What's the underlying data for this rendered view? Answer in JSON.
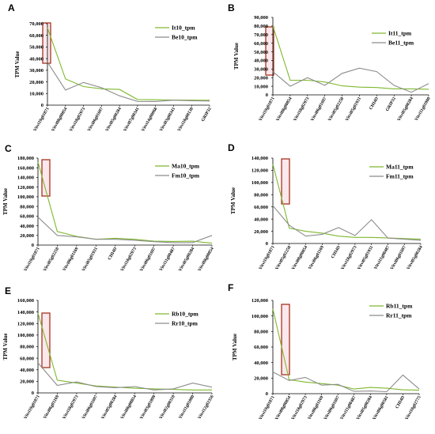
{
  "colors": {
    "series1": "#7fb82e",
    "series2": "#8c8c8c",
    "highlight_border": "#a8331c",
    "highlight_fill": "#f5d6de",
    "axis": "#000000"
  },
  "chart_data": [
    {
      "panel": "A",
      "type": "line",
      "ylabel": "TPM Value",
      "ylim": [
        0,
        70000
      ],
      "yticks": [
        "0",
        "10,000",
        "20,000",
        "30,000",
        "40,000",
        "50,000",
        "60,000",
        "70,000"
      ],
      "categories": [
        "Vitvi19g01871",
        "Vitvi08g00854",
        "Vitvi18g02973",
        "Vitvi06g01697",
        "Vitvi05g00284",
        "Vitvi07g00341",
        "Vitvi14g00068",
        "Vitvi03g00341",
        "Vitvi18g00130",
        "GRIP32"
      ],
      "series": [
        {
          "name": "It10_tpm",
          "values": [
            66500,
            22500,
            16000,
            14000,
            13500,
            4800,
            4600,
            4400,
            4300,
            4200
          ]
        },
        {
          "name": "Be10_tpm",
          "values": [
            37000,
            13000,
            19500,
            15000,
            8000,
            3200,
            3100,
            4300,
            3800,
            3500
          ]
        }
      ]
    },
    {
      "panel": "B",
      "type": "line",
      "ylabel": "TPM Value",
      "ylim": [
        0,
        90000
      ],
      "yticks": [
        "0",
        "10,000",
        "20,000",
        "30,000",
        "40,000",
        "50,000",
        "60,000",
        "70,000",
        "80,000",
        "90,000"
      ],
      "categories": [
        "Vitvi19g01871",
        "Vitvi08g00854",
        "Vitvi18g02973",
        "Vitvi06g01697",
        "Vitvi05g02250",
        "Vitvi05g01931",
        "CHI4D",
        "GRIP32",
        "Vitvi05g00284",
        "Vitvi11g01000"
      ],
      "series": [
        {
          "name": "It11_tpm",
          "values": [
            80000,
            17000,
            17000,
            15000,
            10500,
            9000,
            8500,
            7000,
            7000,
            6500
          ]
        },
        {
          "name": "Be11_tpm",
          "values": [
            27000,
            10000,
            20000,
            11000,
            25000,
            31000,
            27000,
            11000,
            3000,
            13000
          ]
        }
      ]
    },
    {
      "panel": "C",
      "type": "line",
      "ylabel": "TPM Value",
      "ylim": [
        0,
        180000
      ],
      "yticks": [
        "0",
        "20,000",
        "40,000",
        "60,000",
        "80,000",
        "100,000",
        "120,000",
        "140,000",
        "160,000",
        "180,000"
      ],
      "categories": [
        "Vitvi19g01871",
        "Vitvi05g02250",
        "Vitvi06g01169",
        "Vitvi05g01931",
        "CHI4D",
        "Vitvi18g02973",
        "Vitvi06g01697",
        "Vitvi11g00487",
        "Vitvi05g00284",
        "Vitvi08g00854"
      ],
      "series": [
        {
          "name": "Ma10_tpm",
          "values": [
            172000,
            28000,
            18000,
            12000,
            14000,
            12000,
            8000,
            7500,
            8000,
            4000
          ]
        },
        {
          "name": "Fm10_tpm",
          "values": [
            58000,
            20000,
            17000,
            12000,
            12000,
            10000,
            7000,
            5000,
            5000,
            20000
          ]
        }
      ]
    },
    {
      "panel": "D",
      "type": "line",
      "ylabel": "TPM Value",
      "ylim": [
        0,
        140000
      ],
      "yticks": [
        "0",
        "20,000",
        "40,000",
        "60,000",
        "80,000",
        "100,000",
        "120,000",
        "140,000"
      ],
      "categories": [
        "Vitvi19g01871",
        "Vitvi05g02250",
        "Vitvi08g00854",
        "Vitvi06g01169",
        "CHI4D",
        "Vitvi18g02973",
        "Vitvi05g01931",
        "Vitvi11g00487",
        "Vitvi06g01697",
        "Vitvi05g00284"
      ],
      "series": [
        {
          "name": "Ma11_tpm",
          "values": [
            130000,
            25000,
            20000,
            17000,
            12000,
            10000,
            10000,
            9000,
            8000,
            7000
          ]
        },
        {
          "name": "Fm11_tpm",
          "values": [
            62000,
            30000,
            12000,
            15000,
            26000,
            13000,
            39000,
            9000,
            7000,
            5000
          ]
        }
      ]
    },
    {
      "panel": "E",
      "type": "line",
      "ylabel": "TPM Value",
      "ylim": [
        0,
        160000
      ],
      "yticks": [
        "0",
        "20,000",
        "40,000",
        "60,000",
        "80,000",
        "100,000",
        "120,000",
        "140,000",
        "160,000"
      ],
      "categories": [
        "Vitvi19g01871",
        "Vitvi06g01169",
        "Vitvi18g02973",
        "Vitvi06g01697",
        "Vitvi05g00284",
        "Vitvi08g00854",
        "Vitvi03g01899",
        "Vitvi02g00310",
        "Vitvi11g01000",
        "Vitvi12g02356"
      ],
      "series": [
        {
          "name": "Rb10_tpm",
          "values": [
            138000,
            22000,
            17000,
            12000,
            10000,
            8000,
            7000,
            6000,
            5000,
            5000
          ]
        },
        {
          "name": "Rr10_tpm",
          "values": [
            52000,
            13000,
            19000,
            11000,
            9000,
            11000,
            5000,
            7000,
            17000,
            10000
          ]
        }
      ]
    },
    {
      "panel": "F",
      "type": "line",
      "ylabel": "TPM Value",
      "ylim": [
        0,
        120000
      ],
      "yticks": [
        "0",
        "20,000",
        "40,000",
        "60,000",
        "80,000",
        "100,000",
        "120,000"
      ],
      "categories": [
        "Vitvi19g01871",
        "Vitvi08g00854",
        "Vitvi18g02973",
        "Vitvi06g01169",
        "Vitvi06g01697",
        "Vitvi11g00487",
        "Vitvi05g00284",
        "Vitvi06g00581",
        "CHI4D",
        "Vitvi10g02775"
      ],
      "series": [
        {
          "name": "Rb11_tpm",
          "values": [
            109000,
            18000,
            15000,
            13000,
            11000,
            6000,
            8000,
            7000,
            5000,
            4500
          ]
        },
        {
          "name": "Rr11_tpm",
          "values": [
            28000,
            17000,
            21000,
            11000,
            12000,
            3000,
            3500,
            2500,
            24000,
            6000
          ]
        }
      ]
    }
  ]
}
